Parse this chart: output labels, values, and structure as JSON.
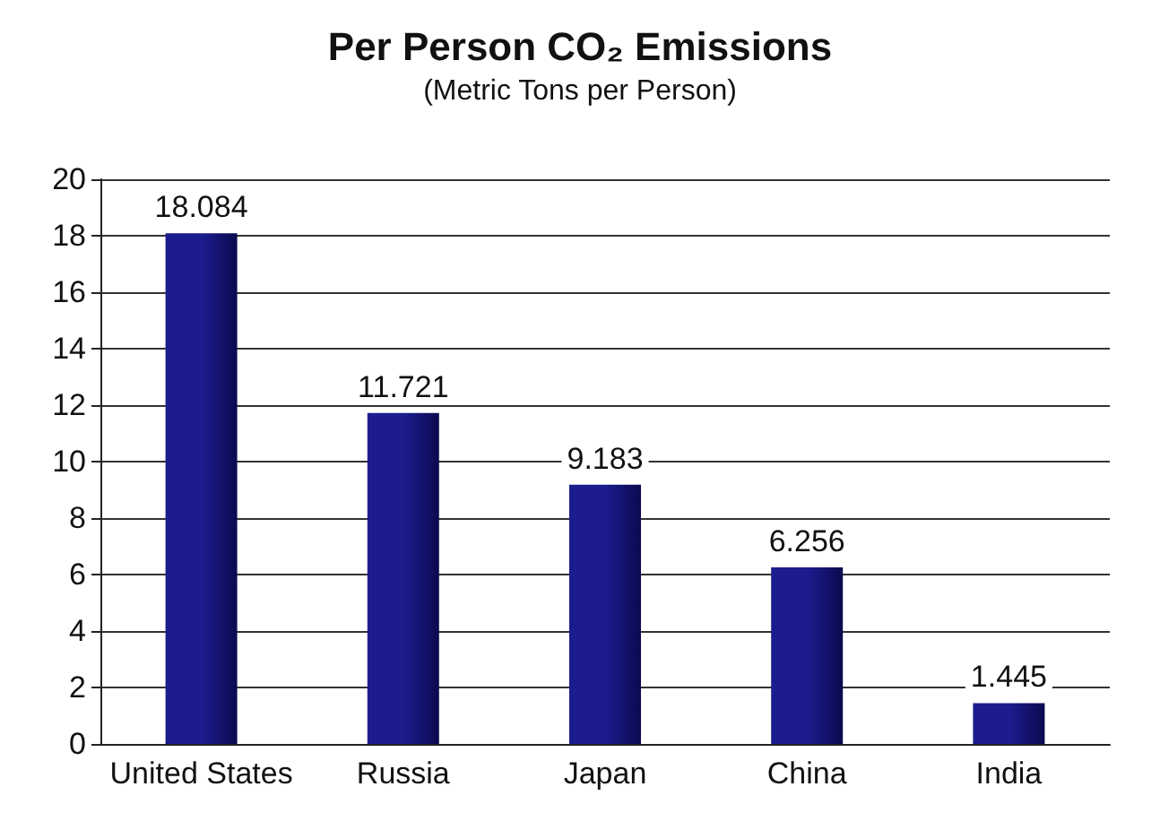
{
  "chart_data": {
    "type": "bar",
    "title": "Per Person CO₂ Emissions",
    "subtitle": "(Metric Tons per Person)",
    "categories": [
      "United States",
      "Russia",
      "Japan",
      "China",
      "India"
    ],
    "values": [
      18.084,
      11.721,
      9.183,
      6.256,
      1.445
    ],
    "color": "#1c1c8f",
    "ylim": [
      0,
      20
    ],
    "yticks": [
      0,
      2,
      4,
      6,
      8,
      10,
      12,
      14,
      16,
      18,
      20
    ],
    "grid": "y",
    "data_labels": true
  }
}
